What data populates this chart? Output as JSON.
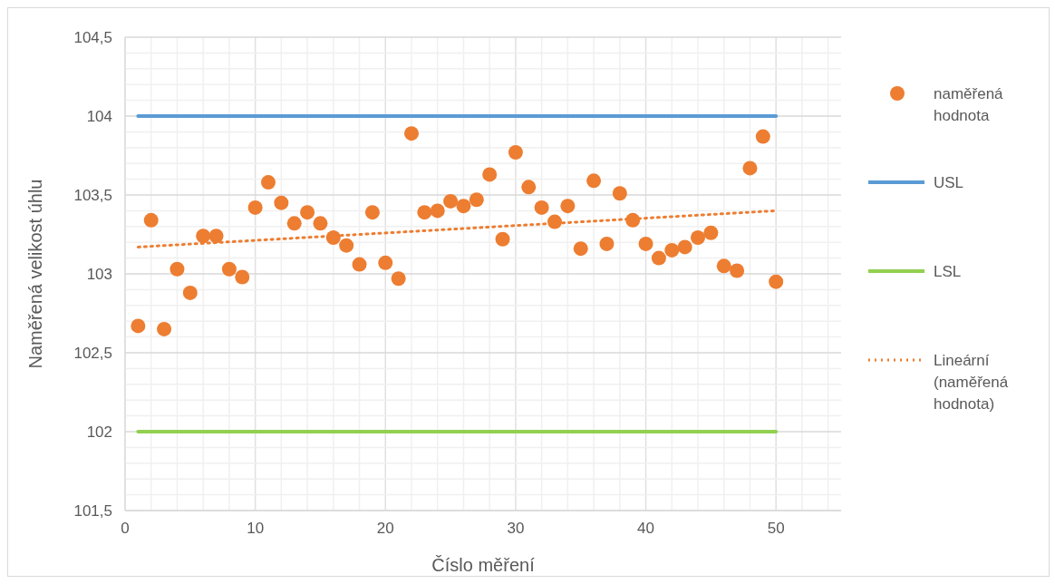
{
  "chart_data": {
    "type": "scatter",
    "xlabel": "Číslo měření",
    "ylabel": "Naměřená velikost úhlu",
    "xlim": [
      0,
      55
    ],
    "ylim": [
      101.5,
      104.5
    ],
    "xticks": [
      0,
      {
        "value": 2,
        "label": null
      },
      {
        "value": 4,
        "label": null
      },
      {
        "value": 6,
        "label": null
      },
      {
        "value": 8,
        "label": null
      },
      10,
      {
        "value": 12,
        "label": null
      },
      {
        "value": 14,
        "label": null
      },
      {
        "value": 16,
        "label": null
      },
      {
        "value": 18,
        "label": null
      },
      20,
      {
        "value": 22,
        "label": null
      },
      {
        "value": 24,
        "label": null
      },
      {
        "value": 26,
        "label": null
      },
      {
        "value": 28,
        "label": null
      },
      30,
      {
        "value": 32,
        "label": null
      },
      {
        "value": 34,
        "label": null
      },
      {
        "value": 36,
        "label": null
      },
      {
        "value": 38,
        "label": null
      },
      40,
      {
        "value": 42,
        "label": null
      },
      {
        "value": 44,
        "label": null
      },
      {
        "value": 46,
        "label": null
      },
      {
        "value": 48,
        "label": null
      },
      50,
      {
        "value": 52,
        "label": null
      },
      {
        "value": 54,
        "label": null
      }
    ],
    "yticks": [
      {
        "value": 101.5,
        "label": "101,5"
      },
      {
        "value": 101.6,
        "label": null
      },
      {
        "value": 101.7,
        "label": null
      },
      {
        "value": 101.8,
        "label": null
      },
      {
        "value": 101.9,
        "label": null
      },
      {
        "value": 102,
        "label": "102"
      },
      {
        "value": 102.1,
        "label": null
      },
      {
        "value": 102.2,
        "label": null
      },
      {
        "value": 102.3,
        "label": null
      },
      {
        "value": 102.4,
        "label": null
      },
      {
        "value": 102.5,
        "label": "102,5"
      },
      {
        "value": 102.6,
        "label": null
      },
      {
        "value": 102.7,
        "label": null
      },
      {
        "value": 102.8,
        "label": null
      },
      {
        "value": 102.9,
        "label": null
      },
      {
        "value": 103,
        "label": "103"
      },
      {
        "value": 103.1,
        "label": null
      },
      {
        "value": 103.2,
        "label": null
      },
      {
        "value": 103.3,
        "label": null
      },
      {
        "value": 103.4,
        "label": null
      },
      {
        "value": 103.5,
        "label": "103,5"
      },
      {
        "value": 103.6,
        "label": null
      },
      {
        "value": 103.7,
        "label": null
      },
      {
        "value": 103.8,
        "label": null
      },
      {
        "value": 103.9,
        "label": null
      },
      {
        "value": 104,
        "label": "104"
      },
      {
        "value": 104.1,
        "label": null
      },
      {
        "value": 104.2,
        "label": null
      },
      {
        "value": 104.3,
        "label": null
      },
      {
        "value": 104.4,
        "label": null
      },
      {
        "value": 104.5,
        "label": "104,5"
      }
    ],
    "grid": true,
    "legend": "right",
    "series": [
      {
        "name": "naměřená hodnota",
        "type": "scatter",
        "marker": "circle",
        "color": "#ed7d31",
        "x": [
          1,
          2,
          3,
          4,
          5,
          6,
          7,
          8,
          9,
          10,
          11,
          12,
          13,
          14,
          15,
          16,
          17,
          18,
          19,
          20,
          21,
          22,
          23,
          24,
          25,
          26,
          27,
          28,
          29,
          30,
          31,
          32,
          33,
          34,
          35,
          36,
          37,
          38,
          39,
          40,
          41,
          42,
          43,
          44,
          45,
          46,
          47,
          48,
          49,
          50
        ],
        "values": [
          102.67,
          103.34,
          102.65,
          103.03,
          102.88,
          103.24,
          103.24,
          103.03,
          102.98,
          103.42,
          103.58,
          103.45,
          103.32,
          103.39,
          103.32,
          103.23,
          103.18,
          103.06,
          103.39,
          103.07,
          102.97,
          103.89,
          103.39,
          103.4,
          103.46,
          103.43,
          103.47,
          103.63,
          103.22,
          103.77,
          103.55,
          103.42,
          103.33,
          103.43,
          103.16,
          103.59,
          103.19,
          103.51,
          103.34,
          103.19,
          103.1,
          103.15,
          103.17,
          103.23,
          103.26,
          103.05,
          103.02,
          103.67,
          103.87,
          102.95
        ]
      },
      {
        "name": "USL",
        "type": "line",
        "line_style": "solid",
        "color": "#5b9bd5",
        "x": [
          1,
          50
        ],
        "values": [
          104,
          104
        ]
      },
      {
        "name": "LSL",
        "type": "line",
        "line_style": "solid",
        "color": "#92d050",
        "x": [
          1,
          50
        ],
        "values": [
          102,
          102
        ]
      },
      {
        "name": "Lineární (naměřená hodnota)",
        "type": "line",
        "line_style": "dotted",
        "color": "#ed7d31",
        "x": [
          1,
          50
        ],
        "values": [
          103.17,
          103.4
        ]
      }
    ]
  }
}
